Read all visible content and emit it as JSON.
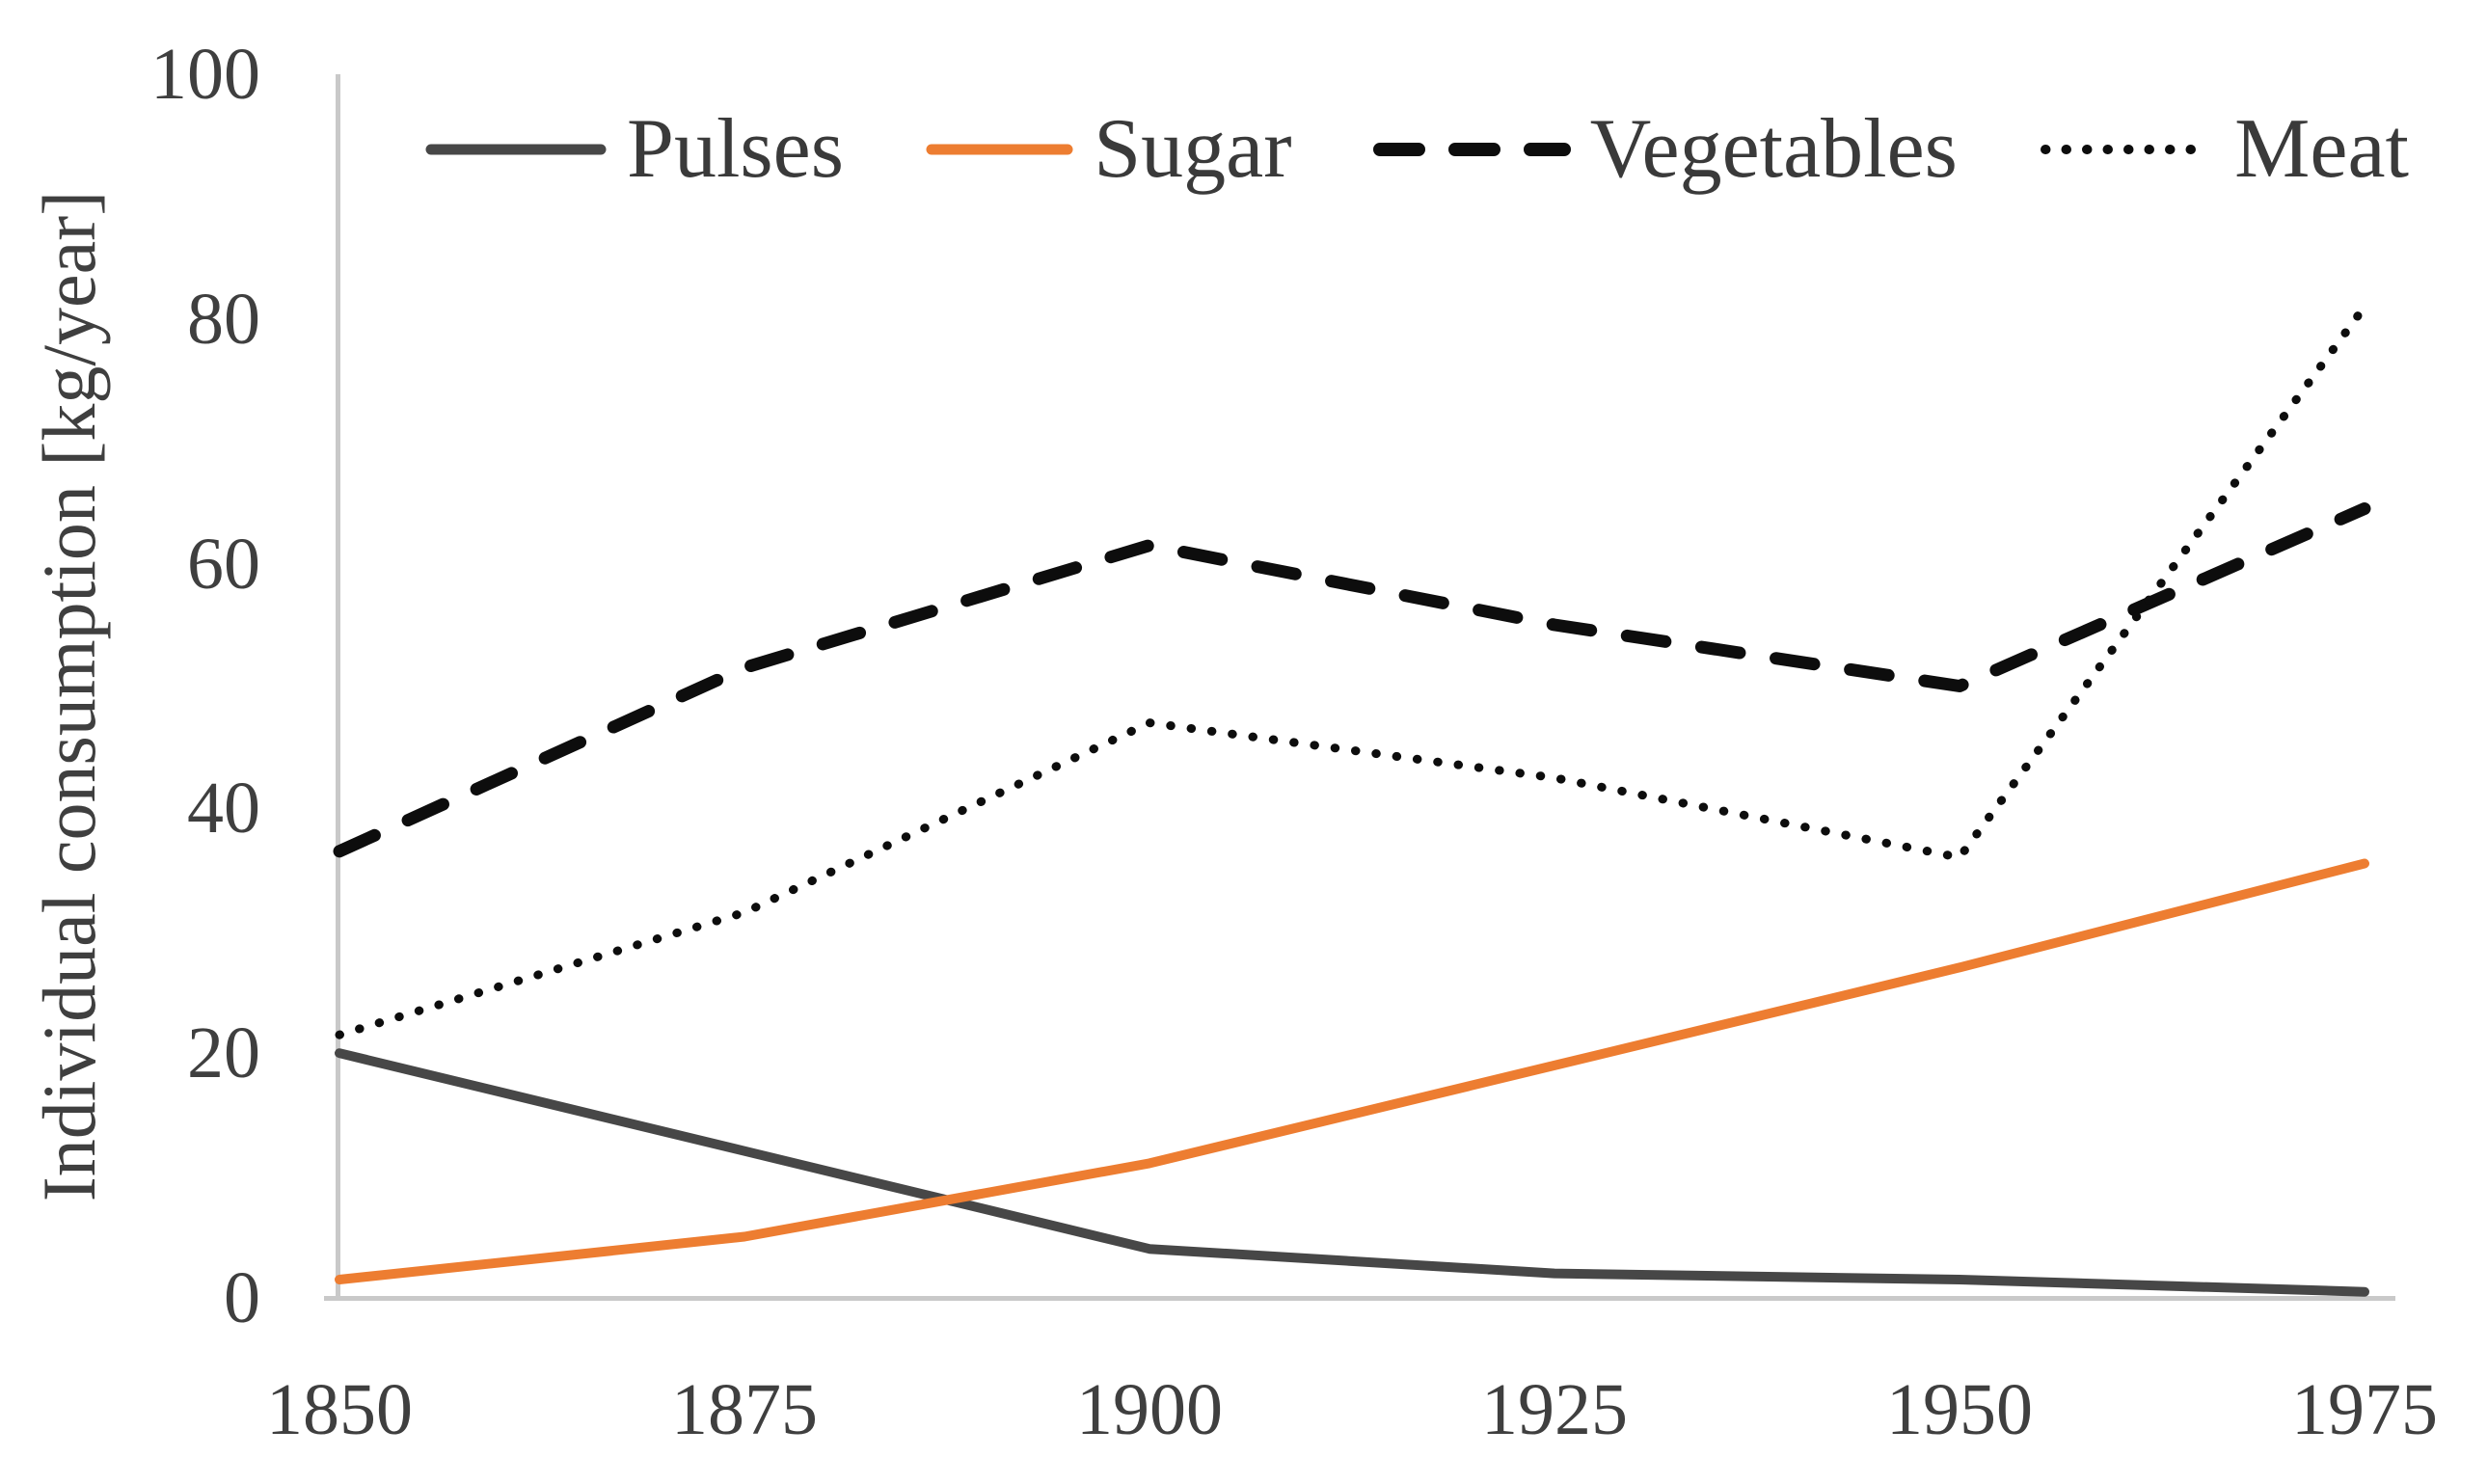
{
  "chart_data": {
    "type": "line",
    "title": "",
    "xlabel": "",
    "ylabel": "Individual consumption [kg/year]",
    "x": [
      1850,
      1875,
      1900,
      1925,
      1950,
      1975
    ],
    "x_tick_labels": [
      "1850",
      "1875",
      "1900",
      "1925",
      "1950",
      "1975"
    ],
    "y_ticks": [
      100,
      80,
      60,
      40,
      20,
      0
    ],
    "y_tick_labels": [
      "100",
      "80",
      "60",
      "40",
      "20",
      "0"
    ],
    "ylim": [
      0,
      100
    ],
    "xlim": [
      1850,
      1975
    ],
    "grid": false,
    "legend_position": "top",
    "series": [
      {
        "name": "Pulses",
        "color": "#474747",
        "style": "solid",
        "values": [
          20,
          12,
          4,
          2,
          1.5,
          0.5
        ]
      },
      {
        "name": "Sugar",
        "color": "#ED7D31",
        "style": "solid",
        "values": [
          1.5,
          5,
          11,
          19,
          27,
          35.5
        ]
      },
      {
        "name": "Vegetables",
        "color": "#0d0d0d",
        "style": "dashed",
        "values": [
          36.5,
          51.5,
          61.5,
          55,
          50,
          64.5
        ]
      },
      {
        "name": "Meat",
        "color": "#0d0d0d",
        "style": "dotted",
        "values": [
          21.5,
          31.5,
          47,
          42.5,
          36,
          81
        ]
      }
    ],
    "axis_color": "#c9c9c9",
    "text_color": "#3f3f3f"
  }
}
